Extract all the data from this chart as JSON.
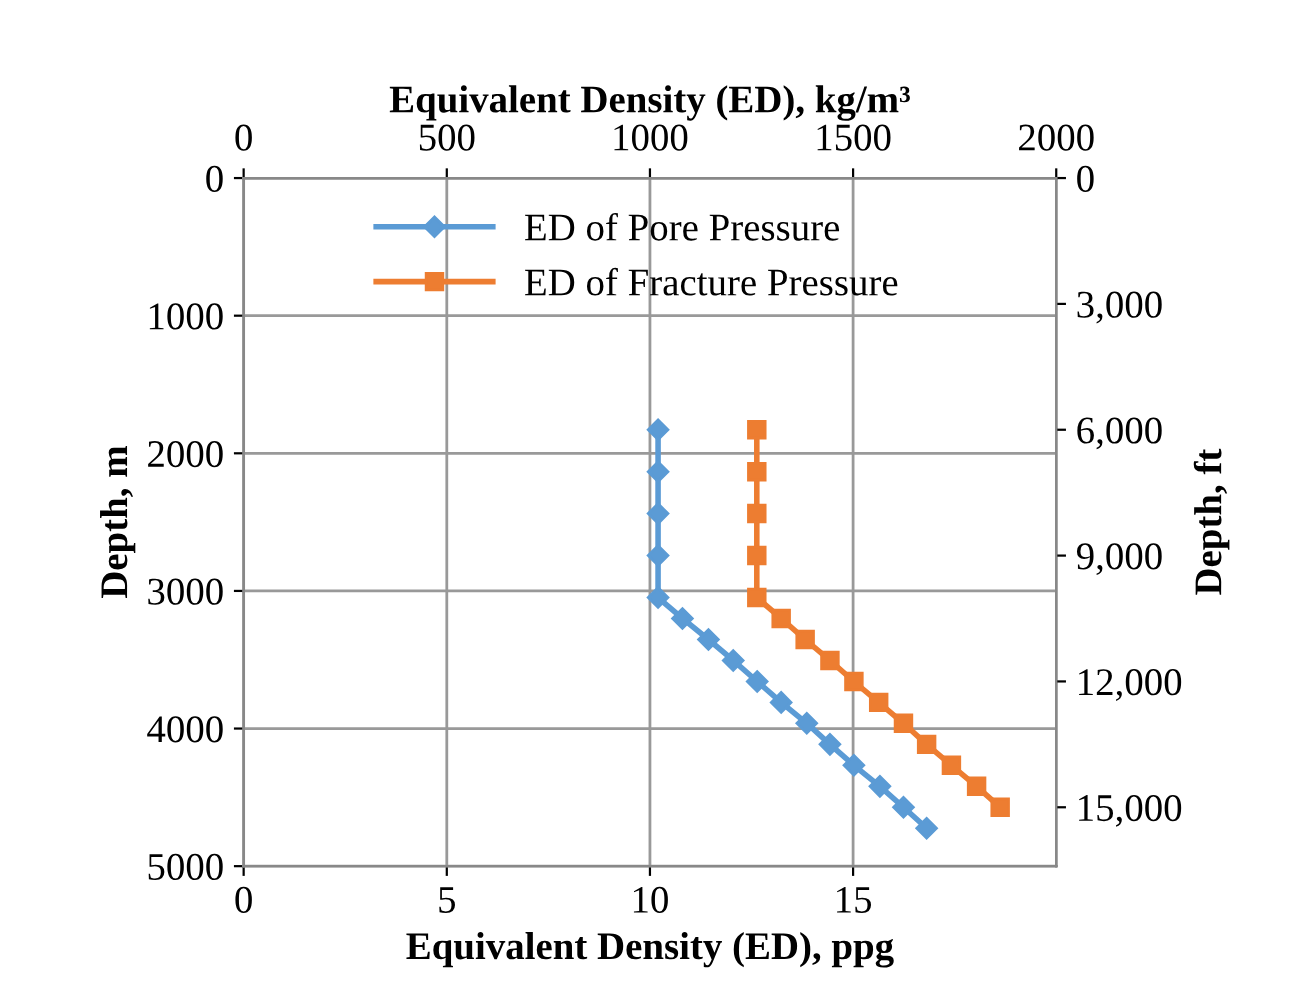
{
  "chart_data": {
    "type": "line",
    "xlabel": "Equivalent Density (ED), ppg",
    "x2label": "Equivalent Density (ED), kg/m³",
    "ylabel": "Depth, m",
    "y2label": "Depth, ft",
    "xlim": [
      0,
      20
    ],
    "xticks": [
      0,
      5,
      10,
      15
    ],
    "x2lim": [
      0,
      2000
    ],
    "x2ticks": [
      0,
      500,
      1000,
      1500,
      2000
    ],
    "ylim": [
      5000,
      0
    ],
    "yticks": [
      0,
      1000,
      2000,
      3000,
      4000,
      5000
    ],
    "y2lim": [
      16404,
      0
    ],
    "y2ticks": [
      {
        "value": 0,
        "label": "0"
      },
      {
        "value": 3000,
        "label": "3,000"
      },
      {
        "value": 6000,
        "label": "6,000"
      },
      {
        "value": 9000,
        "label": "9,000"
      },
      {
        "value": 12000,
        "label": "12,000"
      },
      {
        "value": 15000,
        "label": "15,000"
      }
    ],
    "grid": true,
    "legend": "top left",
    "line_style": "solid",
    "series": [
      {
        "name": "ED of Pore Pressure",
        "color": "#5b9bd5",
        "marker": "diamond",
        "x": [
          10.2,
          10.2,
          10.2,
          10.2,
          10.2,
          10.8,
          11.44,
          12.05,
          12.64,
          13.23,
          13.86,
          14.43,
          15.02,
          15.66,
          16.24,
          16.81
        ],
        "values": [
          1829,
          2134,
          2438,
          2743,
          3048,
          3200,
          3353,
          3505,
          3658,
          3810,
          3962,
          4115,
          4267,
          4420,
          4572,
          4724
        ]
      },
      {
        "name": "ED of Fracture Pressure",
        "color": "#ed7d31",
        "marker": "square",
        "x": [
          12.63,
          12.63,
          12.63,
          12.63,
          12.63,
          13.23,
          13.82,
          14.43,
          15.02,
          15.63,
          16.24,
          16.81,
          17.42,
          18.04,
          18.62
        ],
        "values": [
          1829,
          2134,
          2438,
          2743,
          3048,
          3200,
          3353,
          3505,
          3658,
          3810,
          3962,
          4115,
          4267,
          4420,
          4572
        ]
      }
    ]
  }
}
